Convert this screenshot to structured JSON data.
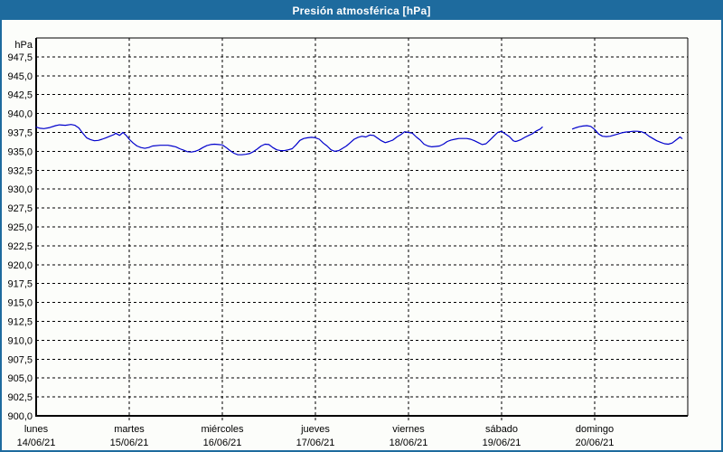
{
  "title": "Presión atmosférica [hPa]",
  "colors": {
    "titlebar_bg": "#1e6b9e",
    "window_border": "#1e6b9e",
    "window_bg": "#fcfdfa",
    "grid": "#000000",
    "axis": "#000000",
    "line": "#0000cc",
    "title_text": "#ffffff",
    "label_text": "#000000"
  },
  "chart_data": {
    "type": "line",
    "title": "Presión atmosférica [hPa]",
    "ylabel": "hPa",
    "ylim": [
      900,
      950
    ],
    "y_tick_step": 2.5,
    "grid": "dashed",
    "legend": "none",
    "y_ticks": [
      {
        "value": 947.5,
        "label": "947,5"
      },
      {
        "value": 945.0,
        "label": "945,0"
      },
      {
        "value": 942.5,
        "label": "942,5"
      },
      {
        "value": 940.0,
        "label": "940,0"
      },
      {
        "value": 937.5,
        "label": "937,5"
      },
      {
        "value": 935.0,
        "label": "935,0"
      },
      {
        "value": 932.5,
        "label": "932,5"
      },
      {
        "value": 930.0,
        "label": "930,0"
      },
      {
        "value": 927.5,
        "label": "927,5"
      },
      {
        "value": 925.0,
        "label": "925,0"
      },
      {
        "value": 922.5,
        "label": "922,5"
      },
      {
        "value": 920.0,
        "label": "920,0"
      },
      {
        "value": 917.5,
        "label": "917,5"
      },
      {
        "value": 915.0,
        "label": "915,0"
      },
      {
        "value": 912.5,
        "label": "912,5"
      },
      {
        "value": 910.0,
        "label": "910,0"
      },
      {
        "value": 907.5,
        "label": "907,5"
      },
      {
        "value": 905.0,
        "label": "905,0"
      },
      {
        "value": 902.5,
        "label": "902,5"
      },
      {
        "value": 900.0,
        "label": "900,0"
      }
    ],
    "x_span_hours": 168,
    "x_days": [
      {
        "name": "lunes",
        "date": "14/06/21"
      },
      {
        "name": "martes",
        "date": "15/06/21"
      },
      {
        "name": "miércoles",
        "date": "16/06/21"
      },
      {
        "name": "jueves",
        "date": "17/06/21"
      },
      {
        "name": "viernes",
        "date": "18/06/21"
      },
      {
        "name": "sábado",
        "date": "19/06/21"
      },
      {
        "name": "domingo",
        "date": "20/06/21"
      }
    ],
    "series": [
      {
        "name": "Presión atmosférica",
        "unit": "hPa",
        "color": "#0000cc",
        "segments": [
          {
            "points": [
              [
                0,
                938.2
              ],
              [
                1,
                938.05
              ],
              [
                2,
                938.0
              ],
              [
                3.5,
                938.15
              ],
              [
                5,
                938.4
              ],
              [
                6,
                938.5
              ],
              [
                7.5,
                938.45
              ],
              [
                9,
                938.55
              ],
              [
                10,
                938.45
              ],
              [
                11,
                938.1
              ],
              [
                12,
                937.4
              ],
              [
                13,
                936.8
              ],
              [
                14,
                936.55
              ],
              [
                15,
                936.4
              ],
              [
                16,
                936.45
              ],
              [
                17,
                936.6
              ],
              [
                18,
                936.8
              ],
              [
                19,
                937.0
              ],
              [
                20,
                937.2
              ],
              [
                20.5,
                937.4
              ],
              [
                21.5,
                937.1
              ],
              [
                22.4,
                937.5
              ],
              [
                23.2,
                937.1
              ],
              [
                24,
                936.6
              ],
              [
                25,
                936.1
              ],
              [
                26,
                935.7
              ],
              [
                27,
                935.5
              ],
              [
                28,
                935.4
              ],
              [
                29,
                935.5
              ],
              [
                30,
                935.7
              ],
              [
                32,
                935.8
              ],
              [
                34,
                935.8
              ],
              [
                35,
                935.7
              ],
              [
                36,
                935.6
              ],
              [
                37,
                935.35
              ],
              [
                38,
                935.15
              ],
              [
                39,
                934.95
              ],
              [
                40,
                934.9
              ],
              [
                41,
                935.0
              ],
              [
                42,
                935.2
              ],
              [
                43,
                935.5
              ],
              [
                44,
                935.75
              ],
              [
                45,
                935.9
              ],
              [
                46,
                935.95
              ],
              [
                47,
                935.9
              ],
              [
                48,
                935.85
              ],
              [
                49,
                935.5
              ],
              [
                50,
                935.1
              ],
              [
                51,
                934.75
              ],
              [
                52,
                934.55
              ],
              [
                53,
                934.55
              ],
              [
                54,
                934.6
              ],
              [
                55,
                934.7
              ],
              [
                56,
                934.95
              ],
              [
                57,
                935.3
              ],
              [
                58,
                935.7
              ],
              [
                59,
                935.95
              ],
              [
                60,
                935.9
              ],
              [
                61,
                935.5
              ],
              [
                62,
                935.2
              ],
              [
                63,
                935.1
              ],
              [
                64,
                935.1
              ],
              [
                65,
                935.2
              ],
              [
                66,
                935.35
              ],
              [
                67,
                935.85
              ],
              [
                68,
                936.45
              ],
              [
                69,
                936.7
              ],
              [
                70,
                936.8
              ],
              [
                71,
                936.85
              ],
              [
                72,
                936.8
              ],
              [
                73,
                936.6
              ],
              [
                74,
                936.1
              ],
              [
                75,
                935.7
              ],
              [
                76,
                935.2
              ],
              [
                77,
                935.0
              ],
              [
                78,
                935.1
              ],
              [
                79,
                935.4
              ],
              [
                80,
                935.7
              ],
              [
                81,
                936.15
              ],
              [
                82,
                936.6
              ],
              [
                83,
                936.85
              ],
              [
                84,
                937.0
              ],
              [
                85,
                936.9
              ],
              [
                86,
                937.15
              ],
              [
                87,
                937.1
              ],
              [
                88,
                936.75
              ],
              [
                89,
                936.4
              ],
              [
                90,
                936.15
              ],
              [
                91,
                936.3
              ],
              [
                92,
                936.5
              ],
              [
                93,
                936.9
              ],
              [
                94,
                937.2
              ],
              [
                95,
                937.6
              ],
              [
                96,
                937.5
              ],
              [
                97,
                937.4
              ],
              [
                98,
                936.9
              ],
              [
                99,
                936.5
              ],
              [
                100,
                935.95
              ],
              [
                101,
                935.7
              ],
              [
                102,
                935.6
              ],
              [
                103,
                935.65
              ],
              [
                104,
                935.7
              ],
              [
                105,
                935.95
              ],
              [
                106,
                936.3
              ],
              [
                107,
                936.5
              ],
              [
                108,
                936.6
              ],
              [
                109,
                936.7
              ],
              [
                111,
                936.7
              ],
              [
                112,
                936.6
              ],
              [
                113,
                936.4
              ],
              [
                114,
                936.15
              ],
              [
                115,
                935.9
              ],
              [
                116,
                936.0
              ],
              [
                117,
                936.5
              ],
              [
                118,
                937.0
              ],
              [
                119,
                937.5
              ],
              [
                120,
                937.65
              ],
              [
                121,
                937.3
              ],
              [
                122,
                936.95
              ],
              [
                123,
                936.4
              ],
              [
                123.5,
                936.3
              ],
              [
                124,
                936.35
              ],
              [
                125,
                936.55
              ],
              [
                126,
                936.85
              ],
              [
                127,
                937.1
              ],
              [
                128,
                937.35
              ],
              [
                129,
                937.7
              ],
              [
                130,
                937.95
              ],
              [
                130.5,
                938.2
              ]
            ]
          },
          {
            "points": [
              [
                138.3,
                937.95
              ],
              [
                139,
                938.1
              ],
              [
                140,
                938.25
              ],
              [
                141,
                938.35
              ],
              [
                142,
                938.4
              ],
              [
                143,
                938.3
              ],
              [
                144,
                937.9
              ],
              [
                145,
                937.3
              ],
              [
                146,
                937.0
              ],
              [
                147,
                936.95
              ],
              [
                148,
                937.0
              ],
              [
                149,
                937.15
              ],
              [
                150,
                937.3
              ],
              [
                151,
                937.45
              ],
              [
                152,
                937.55
              ],
              [
                153,
                937.6
              ],
              [
                154,
                937.65
              ],
              [
                155,
                937.65
              ],
              [
                156,
                937.6
              ],
              [
                157,
                937.4
              ],
              [
                158,
                937.0
              ],
              [
                159,
                936.7
              ],
              [
                160,
                936.4
              ],
              [
                161,
                936.2
              ],
              [
                162,
                936.0
              ],
              [
                163,
                935.95
              ],
              [
                164,
                936.1
              ],
              [
                165,
                936.5
              ],
              [
                166,
                936.9
              ],
              [
                166.5,
                936.7
              ]
            ]
          }
        ]
      }
    ]
  }
}
